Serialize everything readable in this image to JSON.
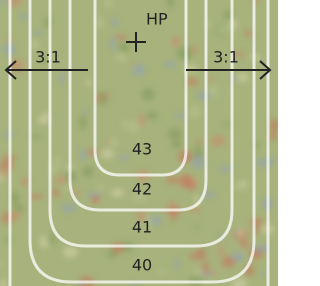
{
  "marker": {
    "label": "HP"
  },
  "slopes": [
    {
      "label": "3:1"
    },
    {
      "label": "3:1"
    }
  ],
  "contours": [
    {
      "label": 43
    },
    {
      "label": 42
    },
    {
      "label": 41
    },
    {
      "label": 40
    }
  ]
}
